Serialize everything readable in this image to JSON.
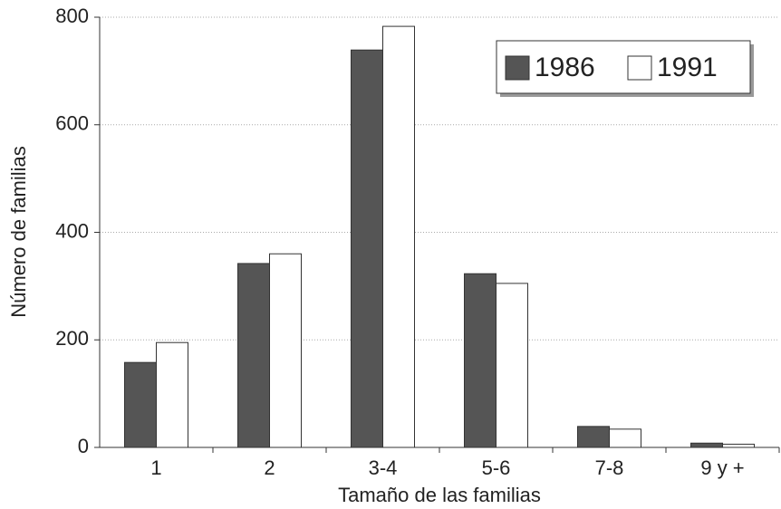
{
  "chart_data": {
    "type": "bar",
    "x_label": "Tamaño de las familias",
    "y_label": "Número de familias",
    "categories": [
      "1",
      "2",
      "3-4",
      "5-6",
      "7-8",
      "9 y +"
    ],
    "series": [
      {
        "name": "1986",
        "color": "#555555",
        "values": [
          158,
          342,
          739,
          323,
          39,
          8
        ]
      },
      {
        "name": "1991",
        "color": "#ffffff",
        "values": [
          195,
          360,
          783,
          305,
          34,
          6
        ]
      }
    ],
    "ylim": [
      0,
      800
    ],
    "yticks": [
      0,
      200,
      400,
      600,
      800
    ],
    "grid": true,
    "legend": "upper right"
  }
}
